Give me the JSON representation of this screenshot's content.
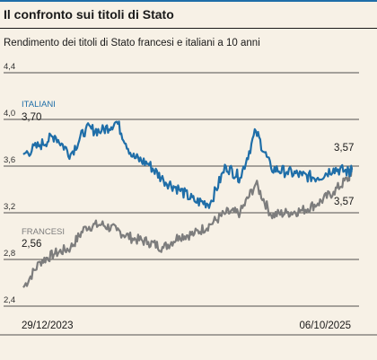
{
  "header": {
    "title": "Il confronto sui titoli di Stato",
    "subtitle": "Rendimento dei titoli di Stato francesi e italiani a 10 anni"
  },
  "colors": {
    "background": "#f7f1e6",
    "italiani": "#1f6ea8",
    "francesi": "#7d7d7d",
    "accent_bar": "#1f6ea8"
  },
  "chart_data": {
    "type": "line",
    "title": "Il confronto sui titoli di Stato",
    "subtitle": "Rendimento dei titoli di Stato francesi e italiani a 10 anni",
    "xlabel": "",
    "ylabel": "",
    "x_start": "29/12/2023",
    "x_end": "06/10/2025",
    "x_tick_labels": [
      "29/12/2023",
      "06/10/2025"
    ],
    "ylim": [
      2.4,
      4.4
    ],
    "y_ticks": [
      "4,4",
      "4,0",
      "3,6",
      "3,2",
      "2,8",
      "2,4"
    ],
    "y_tick_values": [
      4.4,
      4.0,
      3.6,
      3.2,
      2.8,
      2.4
    ],
    "grid": true,
    "series": [
      {
        "name": "ITALIANI",
        "start_label": "3,70",
        "end_label": "3,57",
        "x": [
          "2023-12-29",
          "2024-01-31",
          "2024-02-29",
          "2024-03-31",
          "2024-04-30",
          "2024-05-31",
          "2024-06-30",
          "2024-07-31",
          "2024-08-31",
          "2024-09-30",
          "2024-10-31",
          "2024-11-30",
          "2024-12-31",
          "2025-01-31",
          "2025-02-28",
          "2025-03-31",
          "2025-04-30",
          "2025-05-31",
          "2025-06-30",
          "2025-07-31",
          "2025-08-31",
          "2025-09-30",
          "2025-10-06"
        ],
        "values": [
          3.7,
          3.78,
          3.86,
          3.7,
          3.92,
          3.9,
          3.98,
          3.68,
          3.62,
          3.48,
          3.4,
          3.3,
          3.28,
          3.6,
          3.5,
          3.9,
          3.58,
          3.55,
          3.52,
          3.5,
          3.58,
          3.55,
          3.57
        ]
      },
      {
        "name": "FRANCESI",
        "start_label": "2,56",
        "end_label": "3,57",
        "x": [
          "2023-12-29",
          "2024-01-31",
          "2024-02-29",
          "2024-03-31",
          "2024-04-30",
          "2024-05-31",
          "2024-06-30",
          "2024-07-31",
          "2024-08-31",
          "2024-09-30",
          "2024-10-31",
          "2024-11-30",
          "2024-12-31",
          "2025-01-31",
          "2025-02-28",
          "2025-03-31",
          "2025-04-30",
          "2025-05-31",
          "2025-06-30",
          "2025-07-31",
          "2025-08-31",
          "2025-09-30",
          "2025-10-06"
        ],
        "values": [
          2.56,
          2.78,
          2.85,
          2.9,
          3.08,
          3.1,
          3.05,
          2.98,
          2.95,
          2.9,
          3.0,
          3.02,
          3.1,
          3.2,
          3.2,
          3.45,
          3.18,
          3.2,
          3.22,
          3.28,
          3.38,
          3.5,
          3.57
        ]
      }
    ]
  }
}
